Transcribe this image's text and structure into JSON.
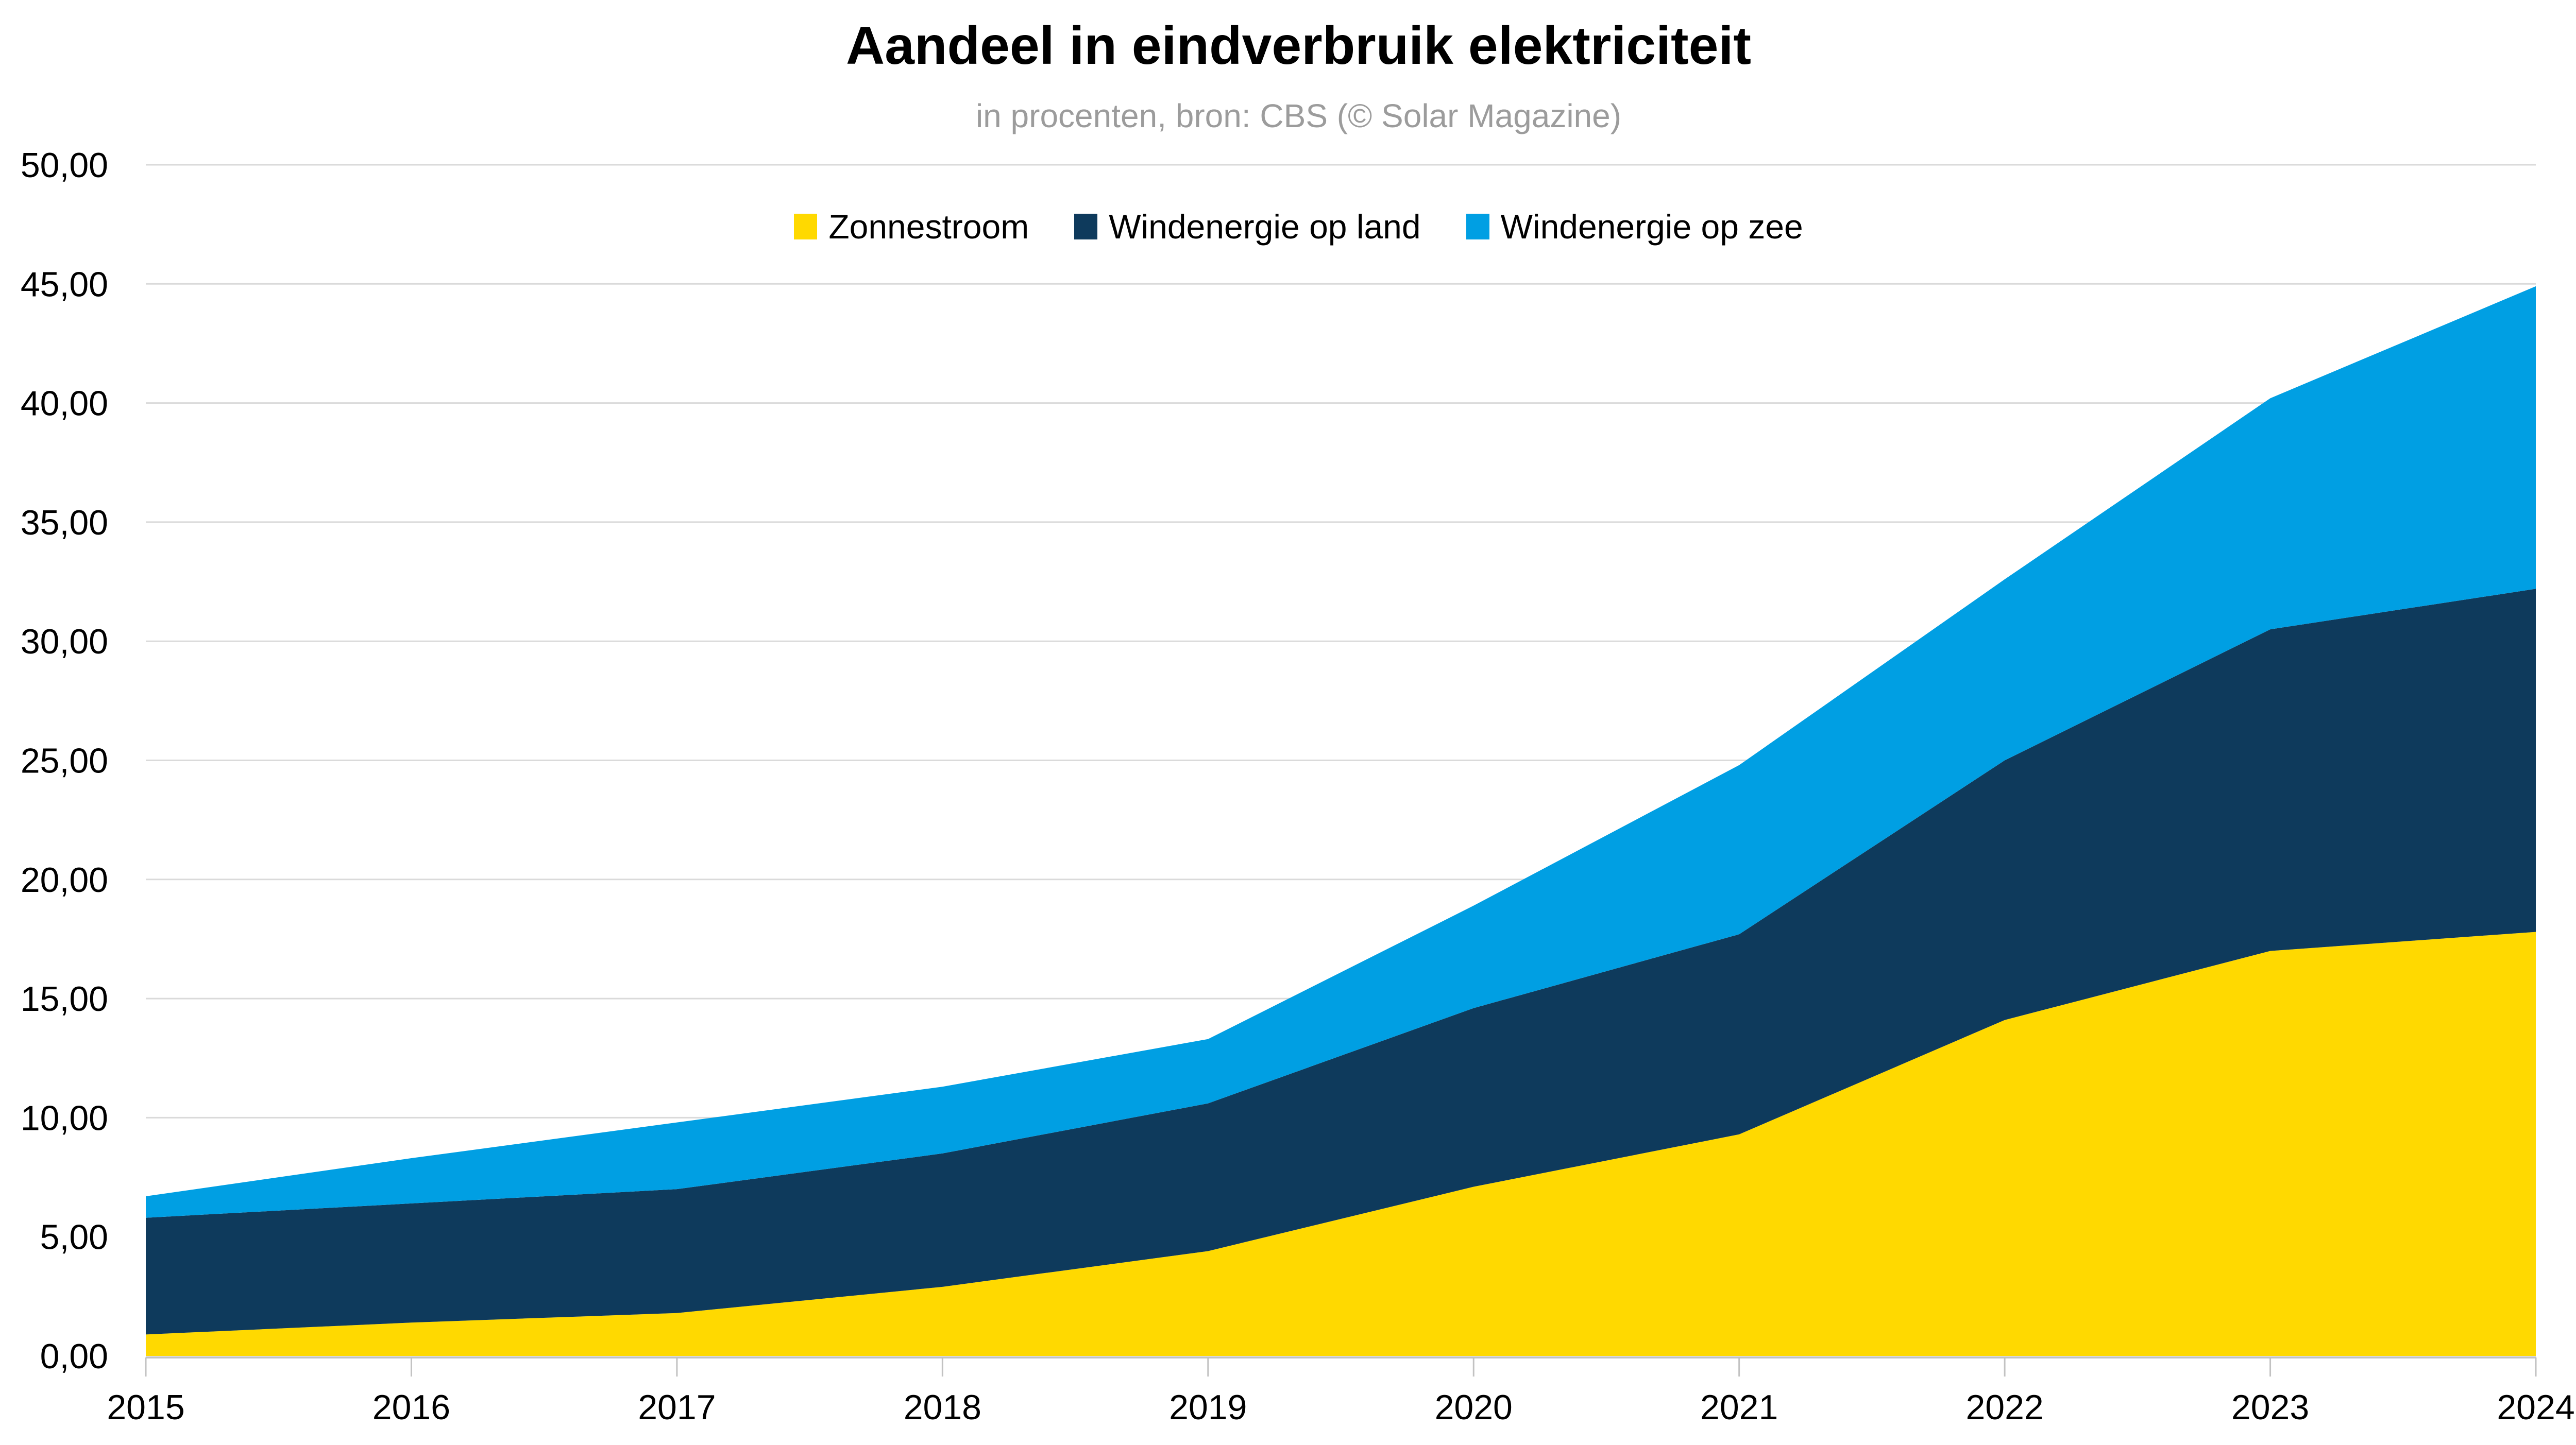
{
  "page": {
    "title": "Aandeel in eindverbruik elektriciteit",
    "subtitle": "in procenten, bron: CBS (© Solar Magazine)"
  },
  "colors": {
    "zonnestroom": "#FFD900",
    "wind_op_land": "#0E3A5C",
    "wind_op_zee": "#009FE3",
    "gridline": "#DADADA",
    "axis_line": "#C2C2C2",
    "subtitle_text": "#9C9C9C",
    "label_text": "#000000",
    "background": "#FFFFFF"
  },
  "chart_data": {
    "type": "area",
    "stacked": true,
    "title": "Aandeel in eindverbruik elektriciteit",
    "subtitle": "in procenten, bron: CBS (© Solar Magazine)",
    "categories": [
      "2015",
      "2016",
      "2017",
      "2018",
      "2019",
      "2020",
      "2021",
      "2022",
      "2023",
      "2024"
    ],
    "series": [
      {
        "name": "Zonnestroom",
        "color": "#FFD900",
        "values": [
          0.9,
          1.4,
          1.8,
          2.9,
          4.4,
          7.1,
          9.3,
          14.1,
          17.0,
          17.8
        ]
      },
      {
        "name": "Windenergie op land",
        "color": "#0E3A5C",
        "values": [
          4.9,
          5.0,
          5.2,
          5.6,
          6.2,
          7.5,
          8.4,
          10.9,
          13.5,
          14.4
        ]
      },
      {
        "name": "Windenergie op zee",
        "color": "#009FE3",
        "values": [
          0.9,
          1.9,
          2.8,
          2.8,
          2.7,
          4.3,
          7.1,
          7.6,
          9.7,
          12.7
        ]
      }
    ],
    "stacked_totals": [
      6.7,
      8.3,
      9.8,
      11.3,
      13.3,
      18.9,
      24.8,
      32.6,
      40.2,
      44.9
    ],
    "xlabel": "",
    "ylabel": "",
    "ylim": [
      0,
      50
    ],
    "y_tick_step": 5,
    "y_tick_labels": [
      "0,00",
      "5,00",
      "10,00",
      "15,00",
      "20,00",
      "25,00",
      "30,00",
      "35,00",
      "40,00",
      "45,00",
      "50,00"
    ],
    "grid": true,
    "legend_position": "top",
    "legend_labels": [
      "Zonnestroom",
      "Windenergie op land",
      "Windenergie op zee"
    ]
  }
}
